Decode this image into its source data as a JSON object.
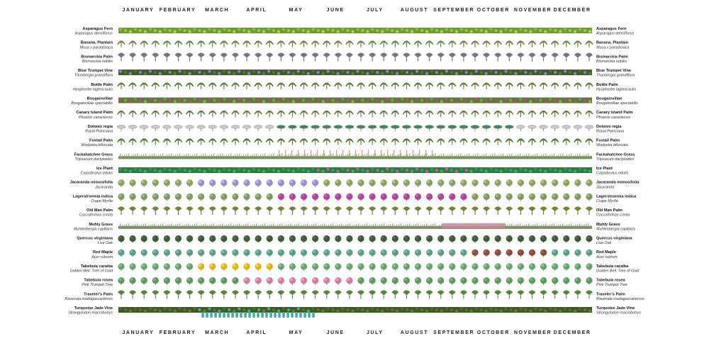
{
  "chart_data": {
    "type": "timeline",
    "months": [
      "JANUARY",
      "FEBRUARY",
      "MARCH",
      "APRIL",
      "MAY",
      "JUNE",
      "JULY",
      "AUGUST",
      "SEPTEMBER",
      "OCTOBER",
      "NOVEMBER",
      "DECEMBER"
    ],
    "plants": [
      {
        "name": "Asparagus Fern",
        "sci": "Asparagus densiflorus",
        "form": "ground",
        "base": "#6f9a2e",
        "accent": "#a3c25a",
        "bloom": []
      },
      {
        "name": "Banana, Plantain",
        "sci": "Musa x paradisiaca",
        "form": "palm",
        "base": "#5d8a2a",
        "accent": "#8fb64a",
        "bloom": []
      },
      {
        "name": "Bismarckia Palm",
        "sci": "Bismarckia nobilis",
        "form": "fan",
        "base": "#6f7a80",
        "accent": "#9aa4aa",
        "bloom": []
      },
      {
        "name": "Blue Trumpet Vine",
        "sci": "Thunbergia grandiflora",
        "form": "vine",
        "base": "#3f5a28",
        "accent": "#8a86c8",
        "bloom": [
          [
            1,
            12
          ]
        ]
      },
      {
        "name": "Bottle Palm",
        "sci": "Hyophorbe lagenicaulis",
        "form": "palm",
        "base": "#4f7d2a",
        "accent": "#8bb04a",
        "bloom": []
      },
      {
        "name": "Bougainvillae",
        "sci": "Bougainvillae spectabilis",
        "form": "shrub",
        "base": "#5e7a38",
        "accent": "#c2457e",
        "bloom": [
          [
            1,
            12
          ]
        ]
      },
      {
        "name": "Canary Island Palm",
        "sci": "Phoenix canariensis",
        "form": "palm",
        "base": "#5a7d34",
        "accent": "#86a652",
        "bloom": []
      },
      {
        "name": "Dolonix regia",
        "sci": "Royal Poinciana",
        "form": "spread",
        "base": "#8a8f85",
        "accent": "#3f8a5a",
        "bloom": [
          [
            5,
            10
          ]
        ]
      },
      {
        "name": "Foxtail Palm",
        "sci": "Wodyetia bifurcata",
        "form": "palm",
        "base": "#4e7a2c",
        "accent": "#7ea54a",
        "bloom": []
      },
      {
        "name": "Fackahatchee Grass",
        "sci": "Tripsacum dactyloides",
        "form": "grass",
        "base": "#8aa068",
        "accent": "#c7a27a",
        "bloom": [
          [
            5,
            8
          ]
        ]
      },
      {
        "name": "Ice Plant",
        "sci": "Carpobrotus edulis",
        "form": "ground",
        "base": "#2f7a3e",
        "accent": "#d45aa0",
        "bloom": [
          [
            6,
            9
          ]
        ]
      },
      {
        "name": "Jacaranda mimosifolia",
        "sci": "Jacaranda",
        "form": "tree",
        "base": "#8aa060",
        "accent": "#9a8cd0",
        "bloom": [
          [
            3,
            5
          ]
        ]
      },
      {
        "name": "Lagerstroemia indica",
        "sci": "Crape Myrtle",
        "form": "tree",
        "base": "#7d9a5a",
        "accent": "#b0409a",
        "bloom": [
          [
            5,
            9
          ]
        ]
      },
      {
        "name": "Old Man Palm",
        "sci": "Coccothrinax crinita",
        "form": "fan",
        "base": "#6a8a3a",
        "accent": "#9ab060",
        "bloom": []
      },
      {
        "name": "Muhly Grass",
        "sci": "Muhlenbergia capillaris",
        "form": "grass",
        "base": "#8aa070",
        "accent": "#c88a9a",
        "bloom": [
          [
            9,
            10
          ]
        ]
      },
      {
        "name": "Quercus virginiana",
        "sci": "Live Oak",
        "form": "tree",
        "base": "#3f5a3a",
        "accent": "#55704a",
        "bloom": []
      },
      {
        "name": "Red Maple",
        "sci": "Acer rubrum",
        "form": "tree",
        "base": "#5a9a8a",
        "accent": "#8a4a3a",
        "bloom": [
          [
            10,
            11
          ]
        ]
      },
      {
        "name": "Tabebuia caraiba",
        "sci": "Golden Bell, Tree of Gold",
        "form": "tree",
        "base": "#6aa070",
        "accent": "#e0b020",
        "bloom": [
          [
            3,
            4
          ]
        ]
      },
      {
        "name": "Tabebuia rosea",
        "sci": "Pink Trumpet Tree",
        "form": "tree",
        "base": "#5a9a5a",
        "accent": "#d07aa0",
        "bloom": [
          [
            4,
            6
          ]
        ]
      },
      {
        "name": "Traveler's Palm",
        "sci": "Ravenala madagascariensis",
        "form": "fan",
        "base": "#4f8a3a",
        "accent": "#78a85a",
        "bloom": []
      },
      {
        "name": "Turquoise Jade Vine",
        "sci": "Strongylodon macrobotrys",
        "form": "vine",
        "base": "#3f5a22",
        "accent": "#3fb09a",
        "bloom": [
          [
            3,
            5
          ]
        ]
      }
    ]
  }
}
